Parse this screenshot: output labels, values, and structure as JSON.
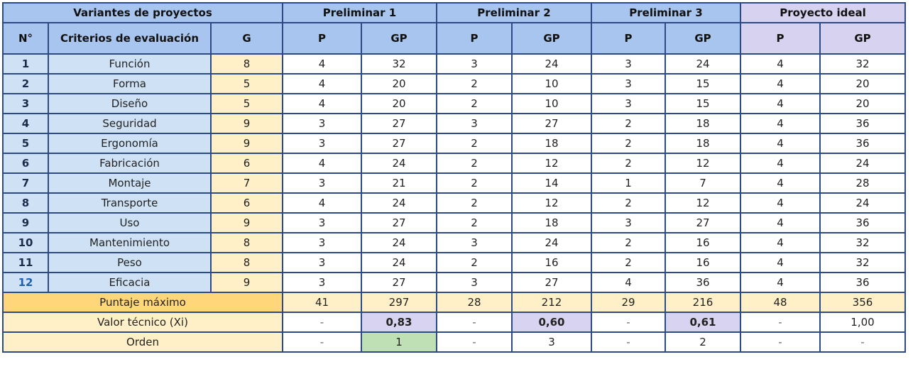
{
  "header": {
    "variants": "Variantes de proyectos",
    "prelim1": "Preliminar 1",
    "prelim2": "Preliminar 2",
    "prelim3": "Preliminar 3",
    "ideal": "Proyecto ideal",
    "num": "N°",
    "criteria": "Criterios de evaluación",
    "g": "G",
    "p": "P",
    "gp": "GP"
  },
  "rows": [
    {
      "n": "1",
      "crit": "Función",
      "g": "8",
      "p1": "4",
      "gp1": "32",
      "p2": "3",
      "gp2": "24",
      "p3": "3",
      "gp3": "24",
      "pi": "4",
      "gpi": "32"
    },
    {
      "n": "2",
      "crit": "Forma",
      "g": "5",
      "p1": "4",
      "gp1": "20",
      "p2": "2",
      "gp2": "10",
      "p3": "3",
      "gp3": "15",
      "pi": "4",
      "gpi": "20"
    },
    {
      "n": "3",
      "crit": "Diseño",
      "g": "5",
      "p1": "4",
      "gp1": "20",
      "p2": "2",
      "gp2": "10",
      "p3": "3",
      "gp3": "15",
      "pi": "4",
      "gpi": "20"
    },
    {
      "n": "4",
      "crit": "Seguridad",
      "g": "9",
      "p1": "3",
      "gp1": "27",
      "p2": "3",
      "gp2": "27",
      "p3": "2",
      "gp3": "18",
      "pi": "4",
      "gpi": "36"
    },
    {
      "n": "5",
      "crit": "Ergonomía",
      "g": "9",
      "p1": "3",
      "gp1": "27",
      "p2": "2",
      "gp2": "18",
      "p3": "2",
      "gp3": "18",
      "pi": "4",
      "gpi": "36"
    },
    {
      "n": "6",
      "crit": "Fabricación",
      "g": "6",
      "p1": "4",
      "gp1": "24",
      "p2": "2",
      "gp2": "12",
      "p3": "2",
      "gp3": "12",
      "pi": "4",
      "gpi": "24"
    },
    {
      "n": "7",
      "crit": "Montaje",
      "g": "7",
      "p1": "3",
      "gp1": "21",
      "p2": "2",
      "gp2": "14",
      "p3": "1",
      "gp3": "7",
      "pi": "4",
      "gpi": "28"
    },
    {
      "n": "8",
      "crit": "Transporte",
      "g": "6",
      "p1": "4",
      "gp1": "24",
      "p2": "2",
      "gp2": "12",
      "p3": "2",
      "gp3": "12",
      "pi": "4",
      "gpi": "24"
    },
    {
      "n": "9",
      "crit": "Uso",
      "g": "9",
      "p1": "3",
      "gp1": "27",
      "p2": "2",
      "gp2": "18",
      "p3": "3",
      "gp3": "27",
      "pi": "4",
      "gpi": "36"
    },
    {
      "n": "10",
      "crit": "Mantenimiento",
      "g": "8",
      "p1": "3",
      "gp1": "24",
      "p2": "3",
      "gp2": "24",
      "p3": "2",
      "gp3": "16",
      "pi": "4",
      "gpi": "32"
    },
    {
      "n": "11",
      "crit": "Peso",
      "g": "8",
      "p1": "3",
      "gp1": "24",
      "p2": "2",
      "gp2": "16",
      "p3": "2",
      "gp3": "16",
      "pi": "4",
      "gpi": "32"
    },
    {
      "n": "12",
      "crit": "Eficacia",
      "g": "9",
      "p1": "3",
      "gp1": "27",
      "p2": "3",
      "gp2": "27",
      "p3": "4",
      "gp3": "36",
      "pi": "4",
      "gpi": "36"
    }
  ],
  "summary": {
    "max": {
      "label": "Puntaje máximo",
      "p1": "41",
      "gp1": "297",
      "p2": "28",
      "gp2": "212",
      "p3": "29",
      "gp3": "216",
      "pi": "48",
      "gpi": "356"
    },
    "tech": {
      "label": "Valor técnico (Xi)",
      "p1": "-",
      "gp1": "0,83",
      "p2": "-",
      "gp2": "0,60",
      "p3": "-",
      "gp3": "0,61",
      "pi": "-",
      "gpi": "1,00"
    },
    "order": {
      "label": "Orden",
      "p1": "-",
      "gp1": "1",
      "p2": "-",
      "gp2": "3",
      "p3": "-",
      "gp3": "2",
      "pi": "-",
      "gpi": "-"
    }
  },
  "colors": {
    "border": "#2c4a86",
    "header_blue": "#a8c5ef",
    "header_purple": "#d6d2ef",
    "criteria_bg": "#cfe1f5",
    "g_bg": "#fff0c8",
    "max_label_bg": "#ffd77a",
    "highlight_purple": "#d8d3f0",
    "highlight_green": "#bfe0b4"
  }
}
